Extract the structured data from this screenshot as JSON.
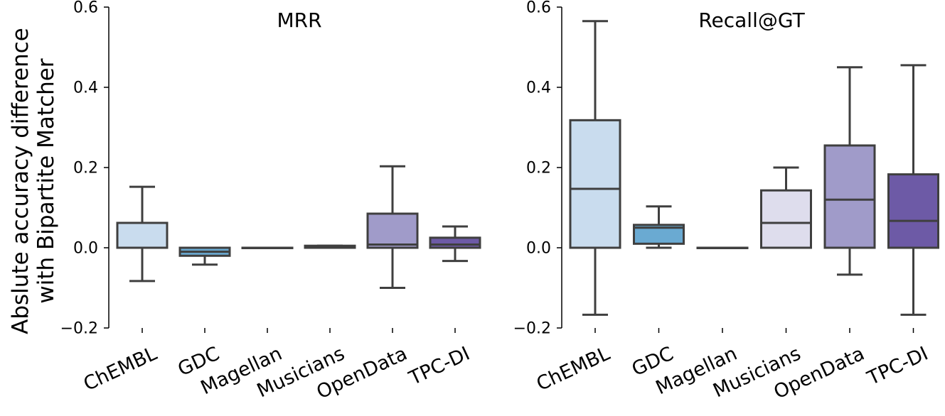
{
  "chart_data": [
    {
      "type": "box",
      "title": "MRR",
      "ylabel_lines": [
        "Abslute accuracy difference",
        "with Bipartite Matcher"
      ],
      "ylim": [
        -0.2,
        0.6
      ],
      "yticks": [
        -0.2,
        0.0,
        0.2,
        0.4,
        0.6
      ],
      "ytick_labels": [
        "−0.2",
        "0.0",
        "0.2",
        "0.4",
        "0.6"
      ],
      "categories": [
        "ChEMBL",
        "GDC",
        "Magellan",
        "Musicians",
        "OpenData",
        "TPC-DI"
      ],
      "colors": [
        "#c9dcee",
        "#6aaad2",
        "#eeeef5",
        "#cfcde6",
        "#a09bc9",
        "#6d5aa6"
      ],
      "boxes": [
        {
          "whislo": -0.083,
          "q1": 0.0,
          "med": 0.0,
          "q3": 0.062,
          "whishi": 0.152
        },
        {
          "whislo": -0.042,
          "q1": -0.02,
          "med": -0.01,
          "q3": 0.0,
          "whishi": 0.0
        },
        {
          "whislo": 0.0,
          "q1": 0.0,
          "med": 0.0,
          "q3": 0.0,
          "whishi": 0.0
        },
        {
          "whislo": 0.0,
          "q1": 0.0,
          "med": 0.002,
          "q3": 0.005,
          "whishi": 0.005
        },
        {
          "whislo": -0.1,
          "q1": 0.0,
          "med": 0.008,
          "q3": 0.085,
          "whishi": 0.203
        },
        {
          "whislo": -0.033,
          "q1": 0.0,
          "med": 0.008,
          "q3": 0.025,
          "whishi": 0.053
        }
      ],
      "grid": false
    },
    {
      "type": "box",
      "title": "Recall@GT",
      "ylim": [
        -0.2,
        0.6
      ],
      "yticks": [
        -0.2,
        0.0,
        0.2,
        0.4,
        0.6
      ],
      "ytick_labels": [
        "−0.2",
        "0.0",
        "0.2",
        "0.4",
        "0.6"
      ],
      "categories": [
        "ChEMBL",
        "GDC",
        "Magellan",
        "Musicians",
        "OpenData",
        "TPC-DI"
      ],
      "colors": [
        "#c9dcee",
        "#6aaad2",
        "#eeeef5",
        "#dedded",
        "#a09bc9",
        "#6d5aa6"
      ],
      "boxes": [
        {
          "whislo": -0.167,
          "q1": 0.0,
          "med": 0.147,
          "q3": 0.318,
          "whishi": 0.565
        },
        {
          "whislo": 0.0,
          "q1": 0.01,
          "med": 0.05,
          "q3": 0.057,
          "whishi": 0.103
        },
        {
          "whislo": 0.0,
          "q1": 0.0,
          "med": 0.0,
          "q3": 0.0,
          "whishi": 0.0
        },
        {
          "whislo": 0.0,
          "q1": 0.0,
          "med": 0.062,
          "q3": 0.143,
          "whishi": 0.2
        },
        {
          "whislo": -0.067,
          "q1": 0.0,
          "med": 0.12,
          "q3": 0.255,
          "whishi": 0.45
        },
        {
          "whislo": -0.167,
          "q1": 0.0,
          "med": 0.067,
          "q3": 0.183,
          "whishi": 0.455
        }
      ],
      "grid": false
    }
  ]
}
